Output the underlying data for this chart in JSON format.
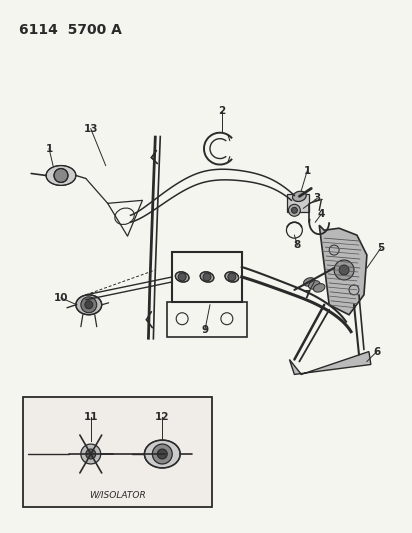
{
  "title": "6114  5700 A",
  "bg_color": "#f5f5f0",
  "line_color": "#2a2a2a",
  "gray_color": "#888888",
  "title_fontsize": 10,
  "label_fontsize": 7.5,
  "inset_label": "W/ISOLATOR"
}
